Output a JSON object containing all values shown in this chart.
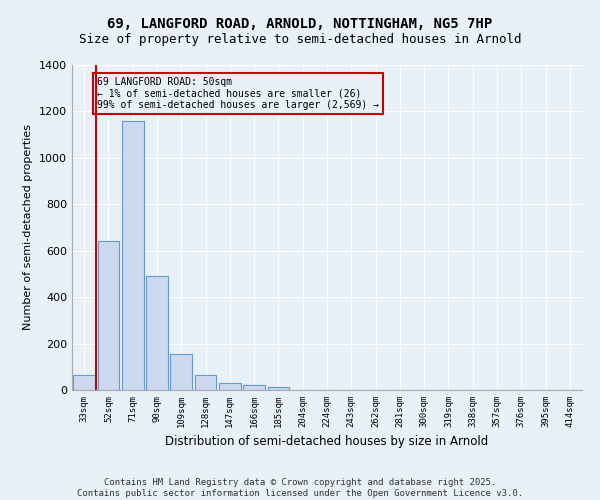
{
  "title": "69, LANGFORD ROAD, ARNOLD, NOTTINGHAM, NG5 7HP",
  "subtitle": "Size of property relative to semi-detached houses in Arnold",
  "xlabel": "Distribution of semi-detached houses by size in Arnold",
  "ylabel": "Number of semi-detached properties",
  "categories": [
    "33sqm",
    "52sqm",
    "71sqm",
    "90sqm",
    "109sqm",
    "128sqm",
    "147sqm",
    "166sqm",
    "185sqm",
    "204sqm",
    "224sqm",
    "243sqm",
    "262sqm",
    "281sqm",
    "300sqm",
    "319sqm",
    "338sqm",
    "357sqm",
    "376sqm",
    "395sqm",
    "414sqm"
  ],
  "values": [
    65,
    640,
    1160,
    490,
    155,
    65,
    30,
    22,
    15,
    0,
    0,
    0,
    0,
    0,
    0,
    0,
    0,
    0,
    0,
    0,
    0
  ],
  "bar_color": "#ccd9f0",
  "bar_edge_color": "#6699cc",
  "highlight_color": "#cc0000",
  "annotation_text": "69 LANGFORD ROAD: 50sqm\n← 1% of semi-detached houses are smaller (26)\n99% of semi-detached houses are larger (2,569) →",
  "annotation_box_color": "#cc0000",
  "ylim": [
    0,
    1400
  ],
  "yticks": [
    0,
    200,
    400,
    600,
    800,
    1000,
    1200,
    1400
  ],
  "background_color": "#e8f0f8",
  "grid_color": "#ffffff",
  "footer_text": "Contains HM Land Registry data © Crown copyright and database right 2025.\nContains public sector information licensed under the Open Government Licence v3.0.",
  "title_fontsize": 10,
  "subtitle_fontsize": 9,
  "annotation_fontsize": 7,
  "footer_fontsize": 6.5,
  "ylabel_fontsize": 8,
  "xlabel_fontsize": 8.5
}
